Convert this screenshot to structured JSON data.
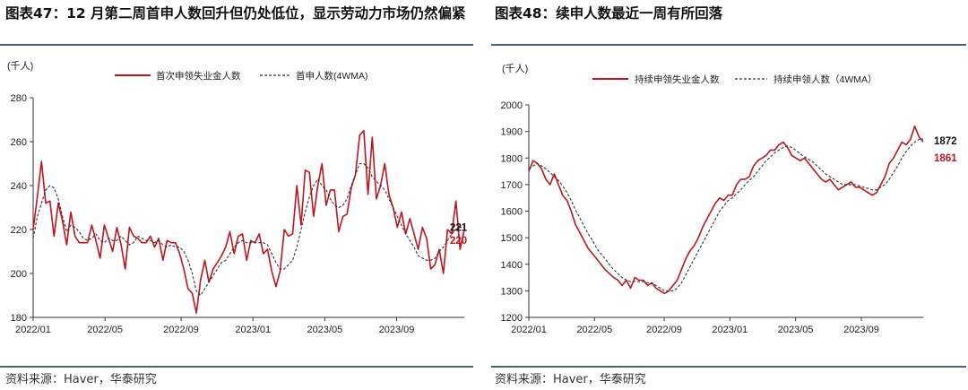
{
  "charts": [
    {
      "figure_label": "图表47：",
      "title": "12 月第二周首申人数回升但仍处低位，显示劳动力市场仍然偏紧",
      "source": "资料来源：Haver，华泰研究",
      "colors": {
        "primary": "#c0141e",
        "secondary": "#333333",
        "rule": "#44627f"
      }
    },
    {
      "figure_label": "图表48：",
      "title": "续申人数最近一周有所回落",
      "source": "资料来源：Haver，华泰研究",
      "colors": {
        "primary": "#c0141e",
        "secondary": "#333333",
        "rule": "#44627f"
      }
    }
  ],
  "chart_data": [
    {
      "type": "line",
      "title": "12 月第二周首申人数回升但仍处低位，显示劳动力市场仍然偏紧",
      "unit_label": "(千人)",
      "ylim": [
        180,
        280
      ],
      "y_ticks": [
        180,
        200,
        220,
        240,
        260,
        280
      ],
      "x_range": [
        0,
        102
      ],
      "x_ticks": [
        {
          "label": "2022/01",
          "x": 0
        },
        {
          "label": "2022/05",
          "x": 17
        },
        {
          "label": "2022/09",
          "x": 35
        },
        {
          "label": "2023/01",
          "x": 52
        },
        {
          "label": "2023/05",
          "x": 69
        },
        {
          "label": "2023/09",
          "x": 86
        }
      ],
      "series": [
        {
          "name": "首次申领失业金人数",
          "style": "solid",
          "values": [
            220,
            235,
            251,
            232,
            233,
            217,
            232,
            224,
            213,
            228,
            217,
            214,
            214,
            214,
            222,
            215,
            207,
            222,
            216,
            210,
            221,
            213,
            202,
            221,
            217,
            216,
            214,
            214,
            217,
            212,
            216,
            206,
            215,
            214,
            214,
            209,
            202,
            193,
            191,
            182,
            197,
            206,
            196,
            202,
            205,
            208,
            212,
            219,
            209,
            217,
            218,
            206,
            215,
            214,
            218,
            209,
            211,
            201,
            194,
            201,
            220,
            217,
            218,
            240,
            222,
            247,
            246,
            226,
            240,
            250,
            231,
            238,
            238,
            219,
            226,
            227,
            239,
            245,
            263,
            265,
            236,
            262,
            234,
            240,
            250,
            236,
            230,
            221,
            228,
            218,
            225,
            218,
            211,
            221,
            216,
            202,
            204,
            211,
            200,
            220,
            218,
            233,
            211,
            220
          ],
          "end_label": "220"
        },
        {
          "name": "首申人数(4WMA)",
          "style": "dashed",
          "values": [
            216,
            226,
            232,
            238,
            240,
            239,
            234,
            226,
            219,
            222,
            221,
            219,
            216,
            215,
            216,
            218,
            215,
            214,
            216,
            215,
            215,
            217,
            215,
            213,
            214,
            217,
            216,
            215,
            215,
            214,
            215,
            213,
            212,
            213,
            212,
            212,
            210,
            206,
            200,
            192,
            190,
            193,
            196,
            199,
            202,
            205,
            206,
            209,
            212,
            214,
            215,
            214,
            214,
            214,
            214,
            214,
            213,
            209,
            205,
            202,
            202,
            204,
            206,
            212,
            220,
            228,
            235,
            240,
            243,
            240,
            238,
            234,
            231,
            230,
            231,
            234,
            240,
            245,
            250,
            250,
            248,
            244,
            242,
            240,
            238,
            234,
            230,
            226,
            222,
            218,
            215,
            212,
            208,
            207,
            206,
            206,
            207,
            210,
            212,
            215,
            218,
            220,
            221,
            221
          ],
          "end_label": "221"
        }
      ]
    },
    {
      "type": "line",
      "title": "续申人数最近一周有所回落",
      "unit_label": "(千人)",
      "ylim": [
        1200,
        2000
      ],
      "y_ticks": [
        1200,
        1300,
        1400,
        1500,
        1600,
        1700,
        1800,
        1900,
        2000
      ],
      "x_range": [
        0,
        102
      ],
      "x_ticks": [
        {
          "label": "2022/01",
          "x": 0
        },
        {
          "label": "2022/05",
          "x": 17
        },
        {
          "label": "2022/09",
          "x": 35
        },
        {
          "label": "2023/01",
          "x": 52
        },
        {
          "label": "2023/05",
          "x": 69
        },
        {
          "label": "2023/09",
          "x": 86
        }
      ],
      "series": [
        {
          "name": "持续申领失业金人数",
          "style": "solid",
          "values": [
            1750,
            1790,
            1780,
            1760,
            1720,
            1700,
            1740,
            1700,
            1660,
            1640,
            1600,
            1550,
            1520,
            1490,
            1460,
            1440,
            1420,
            1400,
            1380,
            1365,
            1350,
            1340,
            1320,
            1340,
            1310,
            1350,
            1340,
            1340,
            1320,
            1330,
            1310,
            1300,
            1290,
            1300,
            1320,
            1340,
            1380,
            1420,
            1450,
            1470,
            1500,
            1540,
            1570,
            1600,
            1630,
            1650,
            1640,
            1660,
            1660,
            1700,
            1720,
            1720,
            1730,
            1770,
            1790,
            1800,
            1810,
            1830,
            1830,
            1850,
            1860,
            1840,
            1810,
            1800,
            1790,
            1800,
            1780,
            1760,
            1740,
            1720,
            1710,
            1720,
            1700,
            1680,
            1690,
            1700,
            1710,
            1690,
            1690,
            1680,
            1670,
            1660,
            1670,
            1700,
            1730,
            1780,
            1800,
            1830,
            1860,
            1850,
            1870,
            1920,
            1880,
            1861
          ],
          "end_label": "1861"
        },
        {
          "name": "持续申领人数（4WMA）",
          "style": "dashed",
          "values": [
            1760,
            1770,
            1780,
            1770,
            1760,
            1745,
            1730,
            1715,
            1695,
            1670,
            1640,
            1605,
            1575,
            1545,
            1515,
            1490,
            1460,
            1440,
            1420,
            1400,
            1380,
            1365,
            1350,
            1340,
            1335,
            1335,
            1335,
            1335,
            1330,
            1330,
            1320,
            1310,
            1300,
            1300,
            1300,
            1310,
            1330,
            1360,
            1390,
            1420,
            1450,
            1480,
            1510,
            1540,
            1570,
            1600,
            1620,
            1640,
            1650,
            1665,
            1680,
            1700,
            1715,
            1730,
            1750,
            1770,
            1790,
            1805,
            1820,
            1830,
            1840,
            1845,
            1840,
            1830,
            1815,
            1805,
            1795,
            1785,
            1770,
            1755,
            1740,
            1730,
            1720,
            1710,
            1700,
            1700,
            1700,
            1700,
            1695,
            1690,
            1685,
            1680,
            1680,
            1690,
            1700,
            1720,
            1745,
            1770,
            1800,
            1825,
            1845,
            1860,
            1870,
            1872
          ],
          "end_label": "1872"
        }
      ]
    }
  ]
}
